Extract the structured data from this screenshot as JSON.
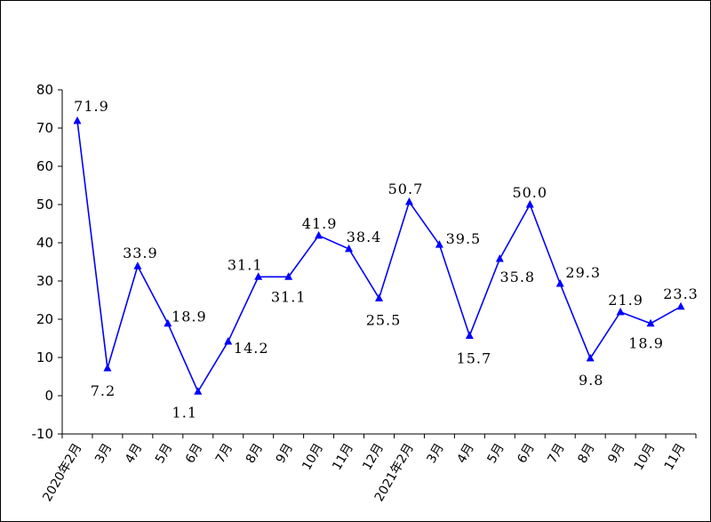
{
  "chart_data": {
    "type": "line",
    "title": "",
    "xlabel": "",
    "ylabel": "",
    "ylim": [
      -10,
      80
    ],
    "yticks": [
      -10,
      0,
      10,
      20,
      30,
      40,
      50,
      60,
      70,
      80
    ],
    "grid": false,
    "legend": "none",
    "categories": [
      "2020年2月",
      "3月",
      "4月",
      "5月",
      "6月",
      "7月",
      "8月",
      "9月",
      "10月",
      "11月",
      "12月",
      "2021年2月",
      "3月",
      "4月",
      "5月",
      "6月",
      "7月",
      "8月",
      "9月",
      "10月",
      "11月"
    ],
    "series": [
      {
        "values": [
          71.9,
          7.2,
          33.9,
          18.9,
          1.1,
          14.2,
          31.1,
          31.1,
          41.9,
          38.4,
          25.5,
          50.7,
          39.5,
          15.7,
          35.8,
          50.0,
          29.3,
          9.8,
          21.9,
          18.9,
          23.3
        ],
        "labels": [
          "71.9",
          "7.2",
          "33.9",
          "18.9",
          "1.1",
          "14.2",
          "31.1",
          "31.1",
          "41.9",
          "38.4",
          "25.5",
          "50.7",
          "39.5",
          "15.7",
          "35.8",
          "50.0",
          "29.3",
          "9.8",
          "21.9",
          "18.9",
          "23.3"
        ],
        "color": "#0000FF",
        "marker": "triangle"
      }
    ]
  }
}
